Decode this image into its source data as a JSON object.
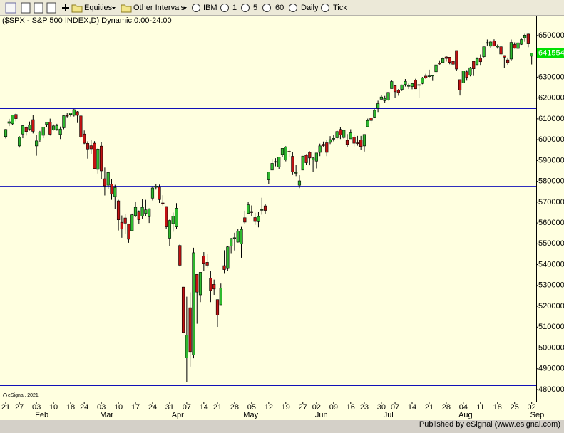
{
  "toolbar": {
    "items": [
      "Equities",
      "Other Intervals",
      "IBM",
      "1",
      "5",
      "60",
      "Daily",
      "Tick"
    ]
  },
  "footer": "Published by eSignal (www.esignal.com)",
  "watermark": "eSignal, 2021",
  "chart_data": {
    "type": "candlestick",
    "title": "($SPX - S&P 500 INDEX,D) Dynamic,0:00-24:00",
    "categories": [
      "21",
      null,
      null,
      null,
      "27",
      null,
      null,
      null,
      null,
      "03",
      null,
      null,
      null,
      null,
      "10",
      null,
      null,
      null,
      null,
      "18",
      null,
      null,
      null,
      "24",
      null,
      null,
      null,
      null,
      "03",
      null,
      null,
      null,
      null,
      "10",
      null,
      null,
      null,
      null,
      "17",
      null,
      null,
      null,
      null,
      "24",
      null,
      null,
      null,
      null,
      "31",
      null,
      null,
      null,
      null,
      "07",
      null,
      null,
      null,
      null,
      "14",
      null,
      null,
      null,
      "21",
      null,
      null,
      null,
      null,
      "28",
      null,
      null,
      null,
      null,
      "05",
      null,
      null,
      null,
      null,
      "12",
      null,
      null,
      null,
      null,
      "19",
      null,
      null,
      null,
      null,
      "27",
      null,
      null,
      null,
      "02",
      null,
      null,
      null,
      null,
      "09",
      null,
      null,
      null,
      null,
      "16",
      null,
      null,
      null,
      "23",
      null,
      null,
      null,
      null,
      "30",
      null,
      null,
      null,
      "07",
      null,
      null,
      null,
      null,
      "14",
      null,
      null,
      null,
      null,
      "21",
      null,
      null,
      null,
      null,
      "28",
      null,
      null,
      null,
      null,
      "04",
      null,
      null,
      null,
      null,
      "11",
      null,
      null,
      null,
      null,
      "18",
      null,
      null,
      null,
      null,
      "25",
      null,
      null,
      null,
      null,
      "02"
    ],
    "month_categories": [
      null,
      null,
      null,
      null,
      null,
      null,
      null,
      null,
      null,
      "Feb",
      null,
      null,
      null,
      null,
      null,
      null,
      null,
      null,
      null,
      null,
      null,
      null,
      null,
      null,
      null,
      null,
      null,
      null,
      "Mar",
      null,
      null,
      null,
      null,
      null,
      null,
      null,
      null,
      null,
      null,
      null,
      null,
      null,
      null,
      null,
      null,
      null,
      null,
      null,
      null,
      "Apr",
      null,
      null,
      null,
      null,
      null,
      null,
      null,
      null,
      null,
      null,
      null,
      null,
      null,
      null,
      null,
      null,
      null,
      null,
      null,
      null,
      "May",
      null,
      null,
      null,
      null,
      null,
      null,
      null,
      null,
      null,
      null,
      null,
      null,
      null,
      null,
      null,
      null,
      null,
      null,
      null,
      null,
      "Jun",
      null,
      null,
      null,
      null,
      null,
      null,
      null,
      null,
      null,
      null,
      null,
      null,
      null,
      null,
      null,
      null,
      null,
      null,
      null,
      "Jul",
      null,
      null,
      null,
      null,
      null,
      null,
      null,
      null,
      null,
      null,
      null,
      null,
      null,
      null,
      null,
      null,
      null,
      null,
      null,
      null,
      null,
      "Aug",
      null,
      null,
      null,
      null,
      null,
      null,
      null,
      null,
      null,
      null,
      null,
      null,
      null,
      null,
      null,
      null,
      null,
      null,
      null,
      null,
      "Sep"
    ],
    "open": [
      601500,
      607900,
      607600,
      612100,
      597000,
      602700,
      605800,
      605000,
      609600,
      597000,
      599800,
      602100,
      607300,
      608400,
      604600,
      604900,
      602500,
      605700,
      611600,
      612100,
      611700,
      613400,
      611400,
      602700,
      598200,
      597100,
      598300,
      585700,
      596900,
      581200,
      578100,
      578600,
      572700,
      570600,
      560300,
      562400,
      559400,
      556300,
      563500,
      565600,
      563300,
      564600,
      563000,
      571900,
      577100,
      577200,
      569600,
      567900,
      552700,
      559700,
      558100,
      549200,
      529200,
      495300,
      519300,
      496600,
      535300,
      525500,
      544100,
      541100,
      533500,
      530500,
      523200,
      520700,
      539500,
      538100,
      548900,
      552900,
      550800,
      549900,
      562500,
      564600,
      565500,
      562600,
      560600,
      566300,
      568200,
      580700,
      585400,
      589500,
      586900,
      592900,
      590300,
      594400,
      592000,
      584200,
      578100,
      585400,
      592500,
      593900,
      590400,
      589700,
      593900,
      597800,
      598500,
      598700,
      600500,
      600900,
      604900,
      601000,
      599700,
      600400,
      601300,
      598500,
      599900,
      597000,
      606200,
      610400,
      610800,
      615100,
      619400,
      618700,
      619100,
      624500,
      625900,
      623700,
      624100,
      626500,
      625600,
      625500,
      628600,
      626100,
      627000,
      630500,
      630400,
      630700,
      632600,
      636800,
      637000,
      639700,
      639600,
      637600,
      642800,
      628800,
      627200,
      632600,
      630900,
      637600,
      636000,
      639100,
      639800,
      646600,
      644900,
      647400,
      644500,
      644600,
      640400,
      638300,
      638700,
      645700,
      643800,
      645800,
      648900,
      650700,
      640100
    ],
    "high": [
      605100,
      610000,
      611900,
      612800,
      601700,
      606900,
      606300,
      608700,
      612000,
      602200,
      604200,
      606200,
      608400,
      610100,
      607300,
      607600,
      606300,
      611600,
      612700,
      612900,
      614700,
      613700,
      611500,
      604400,
      599200,
      600000,
      599300,
      595900,
      598700,
      586600,
      584500,
      581200,
      578300,
      571100,
      563600,
      564200,
      559700,
      564500,
      570300,
      566000,
      571600,
      571100,
      567000,
      577600,
      578600,
      578400,
      573300,
      568000,
      561600,
      565000,
      569500,
      550000,
      529300,
      524600,
      526700,
      548100,
      535300,
      536200,
      546000,
      545000,
      536800,
      532800,
      523300,
      530900,
      546900,
      548800,
      552800,
      555300,
      557100,
      558100,
      565900,
      570000,
      568400,
      564900,
      565500,
      572100,
      569200,
      584500,
      590700,
      591100,
      591700,
      595800,
      596900,
      595400,
      593900,
      587800,
      582900,
      592200,
      593000,
      594400,
      591800,
      593700,
      598100,
      599100,
      599900,
      601700,
      602200,
      604400,
      606000,
      604600,
      602700,
      605000,
      602400,
      601800,
      601800,
      602500,
      610100,
      610800,
      614600,
      618700,
      621500,
      621000,
      622700,
      628500,
      626300,
      624300,
      626400,
      629100,
      626900,
      627200,
      629200,
      626500,
      630100,
      631600,
      633600,
      631000,
      636000,
      638100,
      639500,
      640200,
      639600,
      640900,
      642800,
      628800,
      633000,
      633400,
      634900,
      638000,
      639500,
      640900,
      644600,
      648100,
      647600,
      648200,
      645700,
      644800,
      640500,
      639400,
      648100,
      646700,
      646800,
      648500,
      650800,
      650900,
      641600
    ],
    "low": [
      600600,
      606500,
      607000,
      608800,
      596200,
      600700,
      602000,
      604300,
      603000,
      592300,
      599000,
      600700,
      606200,
      602000,
      604400,
      604300,
      600300,
      605000,
      610700,
      611100,
      611100,
      608000,
      600800,
      597900,
      590900,
      593200,
      585800,
      583700,
      581000,
      573200,
      576100,
      571100,
      566700,
      556400,
      552900,
      554700,
      550500,
      556300,
      562800,
      559700,
      562100,
      563200,
      560000,
      570800,
      576000,
      569600,
      568400,
      557200,
      548900,
      555800,
      557200,
      539100,
      507000,
      483500,
      491000,
      495000,
      511600,
      522000,
      536800,
      538600,
      522000,
      525500,
      510100,
      520700,
      535600,
      537100,
      545500,
      546800,
      550600,
      543300,
      559700,
      564500,
      563400,
      559100,
      557900,
      564000,
      564500,
      578700,
      585400,
      587200,
      585900,
      591500,
      589600,
      591800,
      583000,
      582500,
      576700,
      585400,
      587800,
      587700,
      584500,
      586200,
      592100,
      596700,
      592100,
      597900,
      599200,
      600300,
      600300,
      600500,
      596300,
      600400,
      596800,
      597100,
      595200,
      594300,
      606200,
      607700,
      610400,
      613300,
      619300,
      617700,
      618800,
      624500,
      620100,
      621100,
      623400,
      625500,
      624300,
      624200,
      624300,
      620100,
      626600,
      629100,
      629900,
      628200,
      631600,
      636000,
      636800,
      637500,
      636200,
      634700,
      633200,
      621200,
      627200,
      628300,
      630400,
      630600,
      635900,
      635900,
      639500,
      645200,
      644100,
      644800,
      643700,
      640000,
      634300,
      636000,
      637900,
      643700,
      643100,
      645500,
      647000,
      644400,
      636100
    ],
    "close": [
      604900,
      608600,
      611900,
      610100,
      601200,
      606700,
      603900,
      607100,
      604000,
      599400,
      603700,
      606100,
      608300,
      602600,
      606600,
      606800,
      605100,
      611500,
      611400,
      612900,
      614400,
      611700,
      601300,
      598300,
      595500,
      595600,
      586100,
      595500,
      585000,
      577800,
      584200,
      573800,
      577000,
      561500,
      557200,
      559900,
      552200,
      563900,
      567500,
      561500,
      567500,
      566300,
      566800,
      576800,
      577700,
      571200,
      569300,
      558100,
      561200,
      563300,
      567100,
      539700,
      507400,
      506200,
      498200,
      545700,
      526800,
      536300,
      540600,
      539700,
      527600,
      528300,
      515800,
      528800,
      537600,
      548500,
      552500,
      552900,
      556100,
      556900,
      560400,
      568700,
      565000,
      560700,
      563100,
      566400,
      566000,
      584400,
      588600,
      589200,
      591600,
      595800,
      596400,
      594100,
      584500,
      584200,
      580200,
      592100,
      588900,
      591200,
      591200,
      593600,
      597000,
      597100,
      593900,
      600000,
      600600,
      603900,
      602200,
      604500,
      597700,
      603300,
      598300,
      598100,
      596700,
      602500,
      609200,
      609200,
      614100,
      617300,
      620500,
      619800,
      622700,
      627900,
      623000,
      622600,
      626300,
      628000,
      626000,
      626900,
      624400,
      626400,
      629700,
      629700,
      630600,
      630900,
      635900,
      636300,
      638900,
      639000,
      637100,
      636200,
      633900,
      623800,
      633000,
      629900,
      634500,
      634000,
      638900,
      637400,
      644600,
      646600,
      646900,
      645000,
      644900,
      641100,
      639600,
      637000,
      646700,
      643900,
      646500,
      648100,
      650200,
      646000,
      641554
    ],
    "up_color": "#2fba2f",
    "down_color": "#c41212",
    "hlines": [
      615000,
      577500,
      482000
    ],
    "hline_color": "#1010b8",
    "ylim": [
      474200,
      659200
    ],
    "yticks": [
      480000,
      490000,
      500000,
      510000,
      520000,
      530000,
      540000,
      550000,
      560000,
      570000,
      580000,
      590000,
      600000,
      610000,
      620000,
      630000,
      650000
    ],
    "last_color": "#00e000"
  }
}
